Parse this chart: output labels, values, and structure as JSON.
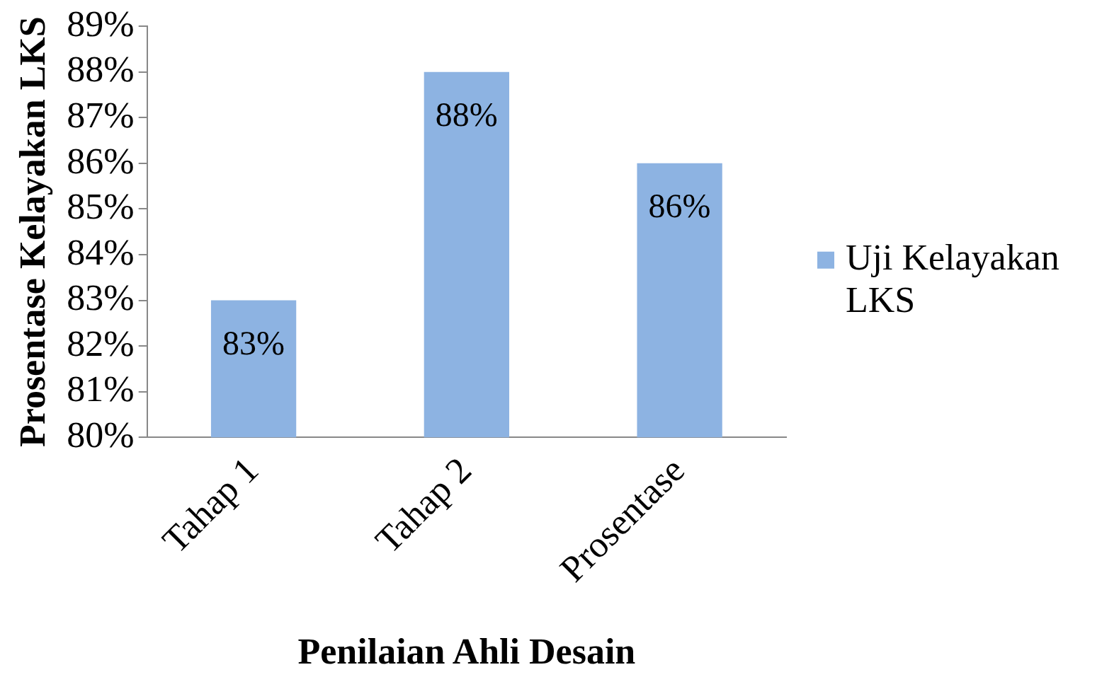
{
  "chart_data": {
    "type": "bar",
    "xlabel": "Penilaian Ahli Desain",
    "ylabel": "Prosentase Kelayakan LKS",
    "categories": [
      "Tahap 1",
      "Tahap 2",
      "Prosentase"
    ],
    "series": [
      {
        "name": "Uji Kelayakan LKS",
        "color": "#8db3e2",
        "values": [
          83,
          88,
          86
        ],
        "value_labels": [
          "83%",
          "88%",
          "86%"
        ]
      }
    ],
    "ylim": [
      80,
      89
    ],
    "yticks": [
      {
        "value": 80,
        "label": "80%"
      },
      {
        "value": 81,
        "label": "81%"
      },
      {
        "value": 82,
        "label": "82%"
      },
      {
        "value": 83,
        "label": "83%"
      },
      {
        "value": 84,
        "label": "84%"
      },
      {
        "value": 85,
        "label": "85%"
      },
      {
        "value": 86,
        "label": "86%"
      },
      {
        "value": 87,
        "label": "87%"
      },
      {
        "value": 88,
        "label": "88%"
      },
      {
        "value": 89,
        "label": "89%"
      }
    ],
    "grid": false,
    "legend": "right"
  }
}
